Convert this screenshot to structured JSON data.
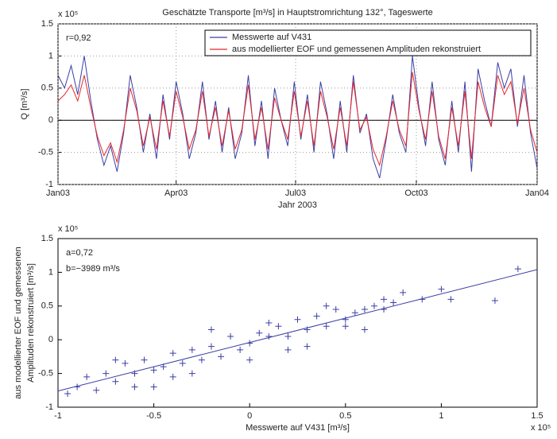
{
  "chart_data": [
    {
      "type": "line",
      "title": "Geschätzte Transporte [m³/s] in Hauptstromrichtung 132°, Tageswerte",
      "ylabel": "Q [m³/s]",
      "xlabel": "Jahr 2003",
      "multiplier": "x 10⁵",
      "annotations": [
        "r=0,92"
      ],
      "xlim": [
        1,
        366
      ],
      "xticks": [
        {
          "value": 1,
          "label": "Jan03"
        },
        {
          "value": 91,
          "label": "Apr03"
        },
        {
          "value": 182,
          "label": "Jul03"
        },
        {
          "value": 274,
          "label": "Oct03"
        },
        {
          "value": 366,
          "label": "Jan04"
        }
      ],
      "ylim": [
        -1,
        1.5
      ],
      "yticks": [
        -1,
        -0.5,
        0,
        0.5,
        1,
        1.5
      ],
      "grid": true,
      "x": [
        1,
        6,
        11,
        16,
        21,
        26,
        31,
        36,
        41,
        46,
        51,
        56,
        61,
        66,
        71,
        76,
        81,
        86,
        91,
        96,
        101,
        106,
        111,
        116,
        121,
        126,
        131,
        136,
        141,
        146,
        151,
        156,
        161,
        166,
        171,
        176,
        181,
        186,
        191,
        196,
        201,
        206,
        211,
        216,
        221,
        226,
        231,
        236,
        241,
        246,
        251,
        256,
        261,
        266,
        271,
        276,
        281,
        286,
        291,
        296,
        301,
        306,
        311,
        316,
        321,
        326,
        331,
        336,
        341,
        346,
        351,
        356,
        361,
        366
      ],
      "series": [
        {
          "name": "Messwerte auf V431",
          "color": "#3b3fa3",
          "values": [
            0.7,
            0.5,
            0.85,
            0.4,
            1.0,
            0.3,
            -0.3,
            -0.7,
            -0.4,
            -0.8,
            -0.2,
            0.7,
            0.2,
            -0.5,
            0.1,
            -0.6,
            0.4,
            -0.3,
            0.6,
            0.1,
            -0.6,
            -0.2,
            0.6,
            -0.3,
            0.3,
            -0.5,
            0.2,
            -0.6,
            -0.2,
            0.7,
            -0.4,
            0.3,
            -0.6,
            0.5,
            0.0,
            -0.4,
            0.6,
            -0.3,
            0.4,
            -0.5,
            0.6,
            0.1,
            -0.6,
            0.3,
            -0.5,
            0.7,
            -0.2,
            0.1,
            -0.6,
            -0.9,
            -0.3,
            0.4,
            -0.2,
            -0.5,
            1.0,
            0.2,
            -0.4,
            0.6,
            -0.3,
            -0.7,
            0.3,
            -0.5,
            0.6,
            -0.8,
            0.8,
            0.3,
            -0.1,
            0.9,
            0.5,
            0.8,
            -0.1,
            0.7,
            -0.2,
            -0.75
          ]
        },
        {
          "name": "aus modellierter EOF und gemessenen Amplituden rekonstruiert",
          "color": "#e8262c",
          "values": [
            0.3,
            0.4,
            0.55,
            0.3,
            0.7,
            0.2,
            -0.25,
            -0.55,
            -0.35,
            -0.65,
            -0.15,
            0.5,
            0.15,
            -0.4,
            0.05,
            -0.45,
            0.3,
            -0.25,
            0.45,
            0.05,
            -0.45,
            -0.15,
            0.45,
            -0.25,
            0.2,
            -0.4,
            0.15,
            -0.45,
            -0.15,
            0.55,
            -0.3,
            0.2,
            -0.45,
            0.35,
            0.0,
            -0.3,
            0.45,
            -0.25,
            0.3,
            -0.4,
            0.45,
            0.05,
            -0.45,
            0.2,
            -0.4,
            0.6,
            -0.15,
            0.05,
            -0.45,
            -0.7,
            -0.25,
            0.3,
            -0.15,
            -0.4,
            0.75,
            0.15,
            -0.3,
            0.45,
            -0.25,
            -0.6,
            0.2,
            -0.4,
            0.45,
            -0.6,
            0.6,
            0.2,
            -0.1,
            0.7,
            0.4,
            0.6,
            -0.05,
            0.5,
            -0.15,
            -0.5
          ]
        }
      ]
    },
    {
      "type": "scatter",
      "ylabel": [
        "aus modellierter EOF und gemessenen",
        "Amplituden rekonstruiert [m³/s]"
      ],
      "xlabel": "Messwerte auf V431 [m³/s]",
      "multiplier": "x 10⁵",
      "xmultiplier": "x 10⁵",
      "annotations": [
        "a=0,72",
        "b=−3989 m³/s"
      ],
      "xlim": [
        -1,
        1.5
      ],
      "xticks": [
        -1,
        -0.5,
        0,
        0.5,
        1,
        1.5
      ],
      "ylim": [
        -1,
        1.5
      ],
      "yticks": [
        -1,
        -0.5,
        0,
        0.5,
        1,
        1.5
      ],
      "grid": false,
      "color": "#3b3fa3",
      "x": [
        -0.95,
        -0.9,
        -0.85,
        -0.8,
        -0.75,
        -0.7,
        -0.65,
        -0.6,
        -0.55,
        -0.5,
        -0.45,
        -0.4,
        -0.35,
        -0.3,
        -0.25,
        -0.2,
        -0.15,
        -0.1,
        -0.05,
        0,
        0.05,
        0.1,
        0.15,
        0.2,
        0.25,
        0.3,
        0.35,
        0.4,
        0.45,
        0.5,
        0.55,
        0.6,
        0.65,
        0.7,
        0.75,
        0.8,
        0.9,
        1.0,
        1.05,
        1.4,
        1.28,
        -0.7,
        -0.6,
        -0.4,
        -0.2,
        0.0,
        0.2,
        0.4,
        0.6,
        -0.5,
        0.3,
        0.1,
        -0.3,
        0.5,
        0.7
      ],
      "y": [
        -0.8,
        -0.7,
        -0.55,
        -0.75,
        -0.5,
        -0.62,
        -0.35,
        -0.5,
        -0.3,
        -0.45,
        -0.4,
        -0.2,
        -0.35,
        -0.15,
        -0.3,
        -0.1,
        -0.25,
        0.05,
        -0.15,
        -0.05,
        0.1,
        0.05,
        0.2,
        0.05,
        0.3,
        0.15,
        0.35,
        0.2,
        0.45,
        0.3,
        0.4,
        0.45,
        0.5,
        0.6,
        0.55,
        0.7,
        0.6,
        0.75,
        0.6,
        1.05,
        0.58,
        -0.3,
        -0.7,
        -0.55,
        0.15,
        -0.3,
        -0.15,
        0.5,
        0.15,
        -0.7,
        -0.1,
        0.25,
        -0.5,
        0.2,
        0.45
      ],
      "fit_line": {
        "x": [
          -1,
          1.5
        ],
        "y": [
          -0.76,
          1.04
        ]
      }
    }
  ]
}
